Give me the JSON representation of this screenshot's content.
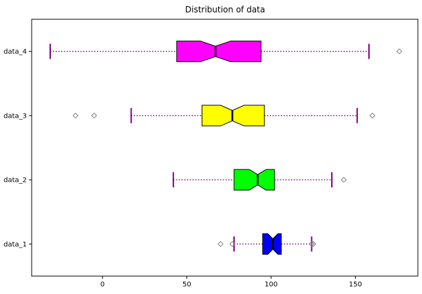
{
  "chart_data": {
    "type": "boxplot",
    "orientation": "horizontal",
    "title": "Distribution of data",
    "xlabel": "",
    "ylabel": "",
    "xlim": [
      -42,
      187
    ],
    "xticks": [
      0,
      50,
      100,
      150
    ],
    "xtick_labels": [
      "0",
      "50",
      "100",
      "150"
    ],
    "grid": false,
    "notched": true,
    "whisker_color": "#800080",
    "whisker_style": "dotted",
    "median_color": "#000000",
    "flier_color": "#808080",
    "series": [
      {
        "name": "data_1",
        "color": "#0000ff",
        "whisker_low": 78,
        "q1": 95,
        "median": 101,
        "q3": 106,
        "whisker_high": 124,
        "notch_low": 98,
        "notch_high": 104,
        "fliers": [
          70,
          77,
          124,
          125
        ]
      },
      {
        "name": "data_2",
        "color": "#00ff00",
        "whisker_low": 42,
        "q1": 78,
        "median": 92,
        "q3": 102,
        "whisker_high": 136,
        "notch_low": 87,
        "notch_high": 97,
        "fliers": [
          143
        ]
      },
      {
        "name": "data_3",
        "color": "#ffff00",
        "whisker_low": 17,
        "q1": 59,
        "median": 77,
        "q3": 96,
        "whisker_high": 151,
        "notch_low": 70,
        "notch_high": 84,
        "fliers": [
          -16,
          -5,
          160
        ]
      },
      {
        "name": "data_4",
        "color": "#ff00ff",
        "whisker_low": -31,
        "q1": 44,
        "median": 67,
        "q3": 94,
        "whisker_high": 158,
        "notch_low": 58,
        "notch_high": 76,
        "fliers": [
          176
        ]
      }
    ]
  }
}
